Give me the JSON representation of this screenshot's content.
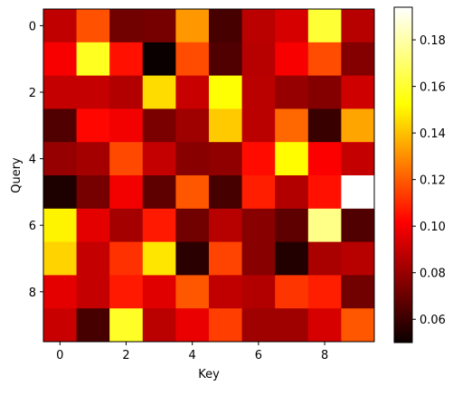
{
  "chart_data": {
    "type": "heatmap",
    "title": "",
    "xlabel": "Key",
    "ylabel": "Query",
    "x_ticks": [
      0,
      2,
      4,
      6,
      8
    ],
    "y_ticks": [
      0,
      2,
      4,
      6,
      8
    ],
    "colormap": "hot",
    "colorbar": {
      "vmin": 0.05,
      "vmax": 0.194,
      "ticks": [
        0.06,
        0.08,
        0.1,
        0.12,
        0.14,
        0.16,
        0.18
      ],
      "tick_labels": [
        "0.06",
        "0.08",
        "0.10",
        "0.12",
        "0.14",
        "0.16",
        "0.18"
      ]
    },
    "values": [
      [
        0.089,
        0.12,
        0.072,
        0.073,
        0.135,
        0.063,
        0.088,
        0.094,
        0.165,
        0.087
      ],
      [
        0.101,
        0.162,
        0.106,
        0.05,
        0.119,
        0.065,
        0.087,
        0.101,
        0.119,
        0.076
      ],
      [
        0.09,
        0.09,
        0.086,
        0.15,
        0.091,
        0.158,
        0.088,
        0.08,
        0.076,
        0.092
      ],
      [
        0.065,
        0.104,
        0.1,
        0.074,
        0.082,
        0.146,
        0.088,
        0.125,
        0.06,
        0.138
      ],
      [
        0.08,
        0.083,
        0.118,
        0.09,
        0.077,
        0.079,
        0.105,
        0.157,
        0.102,
        0.09
      ],
      [
        0.054,
        0.073,
        0.1,
        0.068,
        0.121,
        0.063,
        0.109,
        0.086,
        0.106,
        0.194
      ],
      [
        0.155,
        0.097,
        0.083,
        0.108,
        0.072,
        0.087,
        0.077,
        0.068,
        0.177,
        0.065
      ],
      [
        0.148,
        0.09,
        0.113,
        0.152,
        0.057,
        0.117,
        0.077,
        0.055,
        0.084,
        0.087
      ],
      [
        0.097,
        0.09,
        0.108,
        0.096,
        0.121,
        0.089,
        0.086,
        0.114,
        0.109,
        0.072
      ],
      [
        0.091,
        0.063,
        0.163,
        0.088,
        0.098,
        0.116,
        0.082,
        0.082,
        0.094,
        0.121
      ]
    ]
  }
}
